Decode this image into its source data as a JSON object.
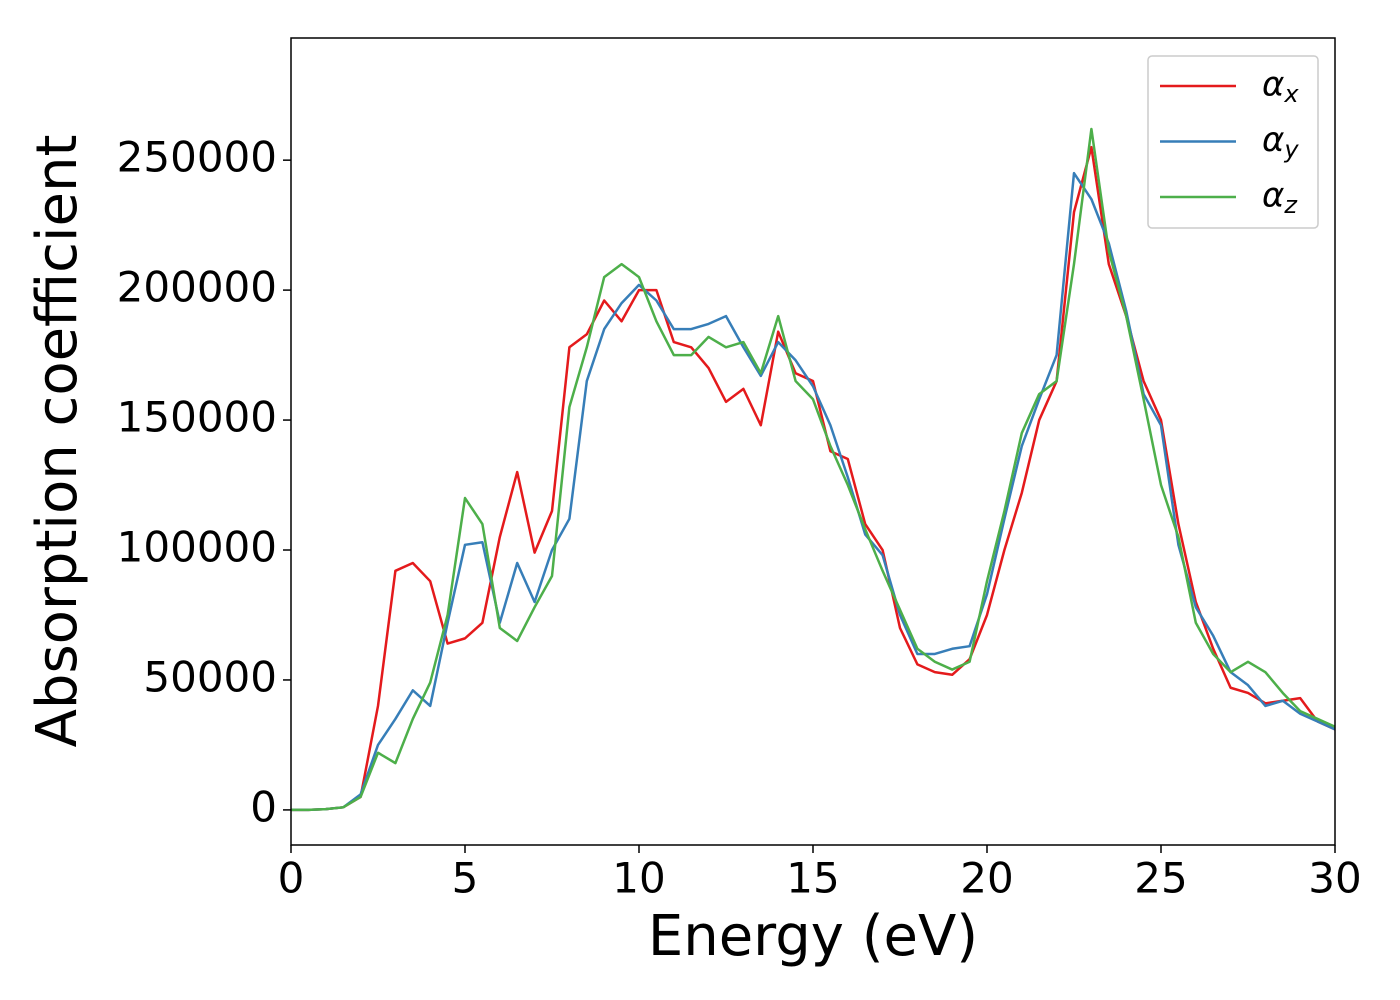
{
  "chart_data": {
    "type": "line",
    "xlabel": "Energy (eV)",
    "ylabel": "Absorption coefficient",
    "x": [
      0,
      0.5,
      1,
      1.5,
      2,
      2.5,
      3,
      3.5,
      4,
      4.5,
      5,
      5.5,
      6,
      6.5,
      7,
      7.5,
      8,
      8.5,
      9,
      9.5,
      10,
      10.5,
      11,
      11.5,
      12,
      12.5,
      13,
      13.5,
      14,
      14.5,
      15,
      15.5,
      16,
      16.5,
      17,
      17.5,
      18,
      18.5,
      19,
      19.5,
      20,
      20.5,
      21,
      21.5,
      22,
      22.5,
      23,
      23.5,
      24,
      24.5,
      25,
      25.5,
      26,
      26.5,
      27,
      27.5,
      28,
      28.5,
      29,
      29.5,
      30
    ],
    "series": [
      {
        "name": "αx",
        "color": "#e41a1c",
        "values": [
          0,
          0,
          300,
          1000,
          5000,
          40000,
          92000,
          95000,
          88000,
          64000,
          66000,
          72000,
          105000,
          130000,
          99000,
          115000,
          178000,
          183000,
          196000,
          188000,
          200000,
          200000,
          180000,
          178000,
          170000,
          157000,
          162000,
          148000,
          184000,
          168000,
          165000,
          138000,
          135000,
          110000,
          100000,
          70000,
          56000,
          53000,
          52000,
          58000,
          75000,
          100000,
          122000,
          150000,
          165000,
          230000,
          255000,
          210000,
          190000,
          165000,
          150000,
          110000,
          80000,
          62000,
          47000,
          45000,
          41000,
          42000,
          43000,
          34000,
          31000
        ]
      },
      {
        "name": "αy",
        "color": "#377eb8",
        "values": [
          0,
          0,
          300,
          1000,
          6000,
          25000,
          35000,
          46000,
          40000,
          72000,
          102000,
          103000,
          72000,
          95000,
          80000,
          100000,
          112000,
          165000,
          185000,
          195000,
          202000,
          196000,
          185000,
          185000,
          187000,
          190000,
          178000,
          167000,
          180000,
          173000,
          163000,
          148000,
          128000,
          106000,
          98000,
          75000,
          60000,
          60000,
          62000,
          63000,
          83000,
          112000,
          140000,
          158000,
          175000,
          245000,
          235000,
          218000,
          192000,
          160000,
          148000,
          102000,
          78000,
          67000,
          53000,
          48000,
          40000,
          42000,
          37000,
          34000,
          31000
        ]
      },
      {
        "name": "αz",
        "color": "#4daf4a",
        "values": [
          0,
          0,
          300,
          1000,
          5000,
          22000,
          18000,
          35000,
          49000,
          75000,
          120000,
          110000,
          70000,
          65000,
          78000,
          90000,
          155000,
          178000,
          205000,
          210000,
          205000,
          188000,
          175000,
          175000,
          182000,
          178000,
          180000,
          168000,
          190000,
          165000,
          158000,
          140000,
          125000,
          108000,
          92000,
          77000,
          62000,
          57000,
          54000,
          57000,
          88000,
          115000,
          145000,
          160000,
          165000,
          210000,
          262000,
          215000,
          190000,
          158000,
          125000,
          105000,
          72000,
          60000,
          53000,
          57000,
          53000,
          45000,
          38000,
          35000,
          32000
        ]
      }
    ],
    "xlim": [
      0,
      30
    ],
    "xticks": [
      0,
      5,
      10,
      15,
      20,
      25,
      30
    ],
    "ylim": [
      -13500,
      297000
    ],
    "yticks": [
      0,
      50000,
      100000,
      150000,
      200000,
      250000
    ],
    "legend": "upper-right"
  }
}
